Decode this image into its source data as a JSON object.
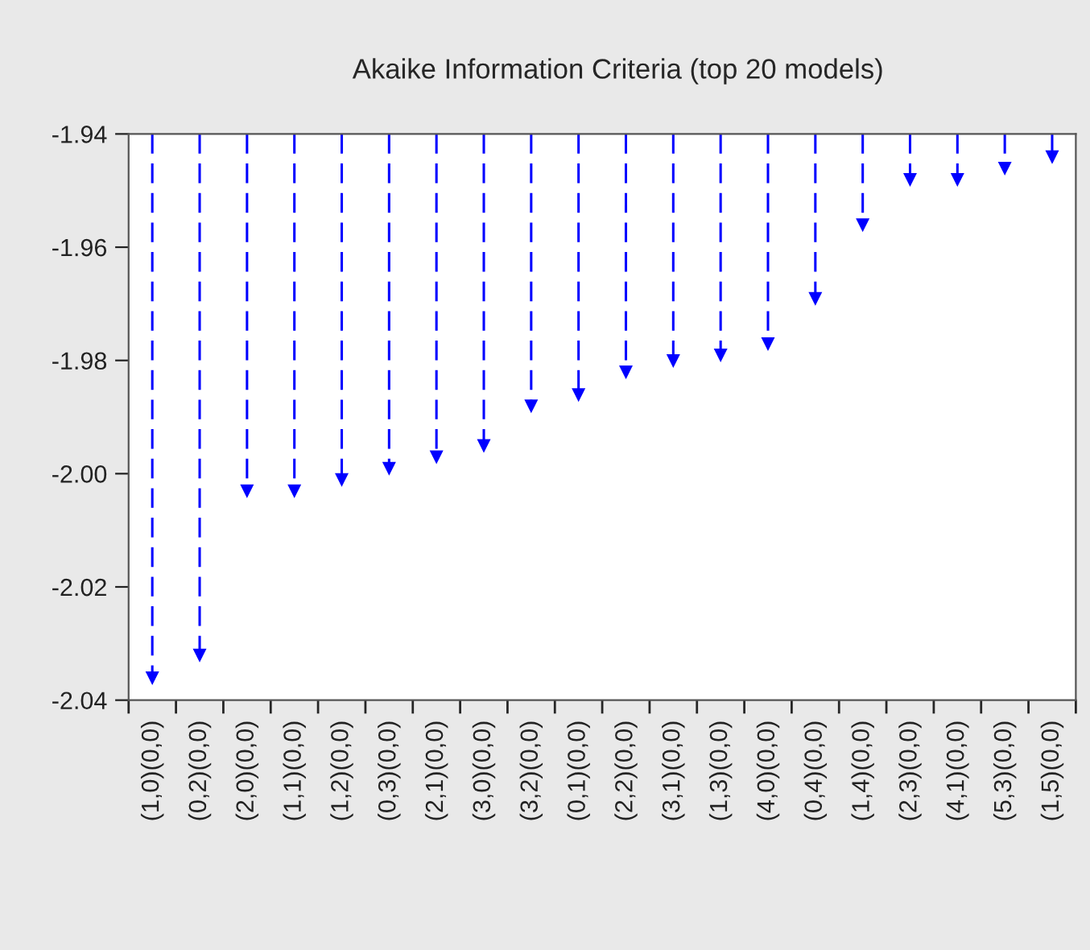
{
  "chart_data": {
    "type": "lollipop",
    "title": "Akaike Information Criteria (top 20 models)",
    "categories": [
      "(1,0)(0,0)",
      "(0,2)(0,0)",
      "(2,0)(0,0)",
      "(1,1)(0,0)",
      "(1,2)(0,0)",
      "(0,3)(0,0)",
      "(2,1)(0,0)",
      "(3,0)(0,0)",
      "(3,2)(0,0)",
      "(0,1)(0,0)",
      "(2,2)(0,0)",
      "(3,1)(0,0)",
      "(1,3)(0,0)",
      "(4,0)(0,0)",
      "(0,4)(0,0)",
      "(1,4)(0,0)",
      "(2,3)(0,0)",
      "(4,1)(0,0)",
      "(5,3)(0,0)",
      "(1,5)(0,0)"
    ],
    "series": [
      {
        "color": "#0000ff",
        "values": [
          -2.036,
          -2.032,
          -2.003,
          -2.003,
          -2.001,
          -1.999,
          -1.997,
          -1.995,
          -1.988,
          -1.986,
          -1.982,
          -1.98,
          -1.979,
          -1.977,
          -1.969,
          -1.956,
          -1.948,
          -1.948,
          -1.946,
          -1.944
        ]
      }
    ],
    "ylim": [
      -2.04,
      -1.94
    ],
    "yticks": [
      {
        "value": -2.04,
        "label": "-2.04"
      },
      {
        "value": -2.02,
        "label": "-2.02"
      },
      {
        "value": -2.0,
        "label": "-2.00"
      },
      {
        "value": -1.98,
        "label": "-1.98"
      },
      {
        "value": -1.96,
        "label": "-1.96"
      },
      {
        "value": -1.94,
        "label": "-1.94"
      }
    ],
    "marker": "triangle",
    "line_style": "dashed",
    "legend": false
  }
}
